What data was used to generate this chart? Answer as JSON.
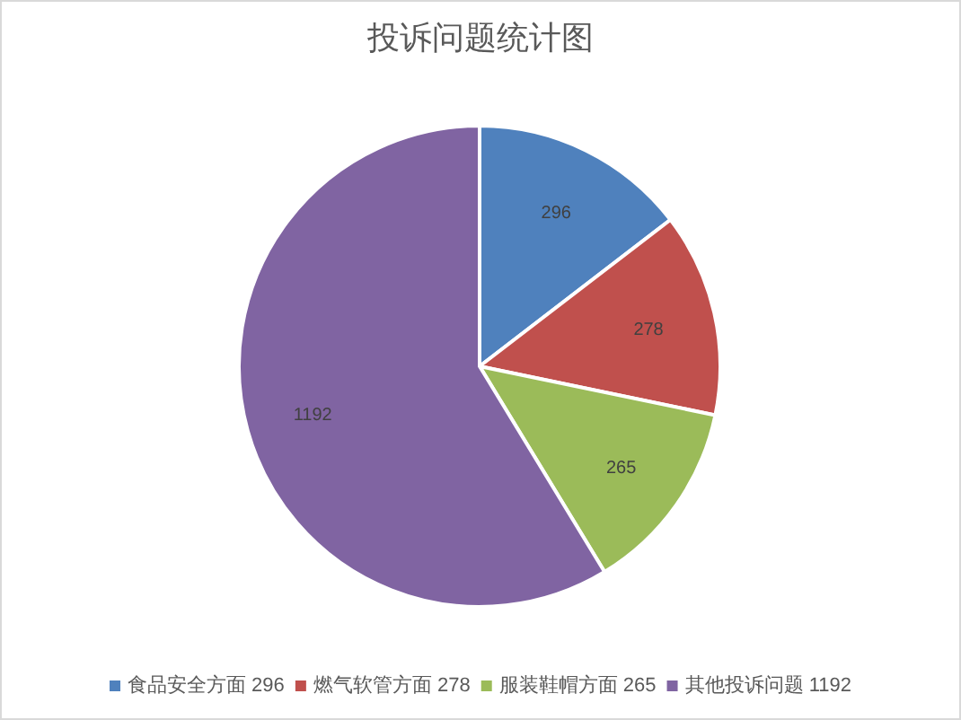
{
  "chart_data": {
    "type": "pie",
    "title": "投诉问题统计图",
    "categories": [
      "食品安全方面 296",
      "燃气软管方面 278",
      "服装鞋帽方面 265",
      "其他投诉问题 1192"
    ],
    "values": [
      296,
      278,
      265,
      1192
    ],
    "colors": [
      "#4f81bd",
      "#c0504d",
      "#9bbb59",
      "#8064a2"
    ],
    "data_labels": true,
    "legend": "bottom"
  }
}
